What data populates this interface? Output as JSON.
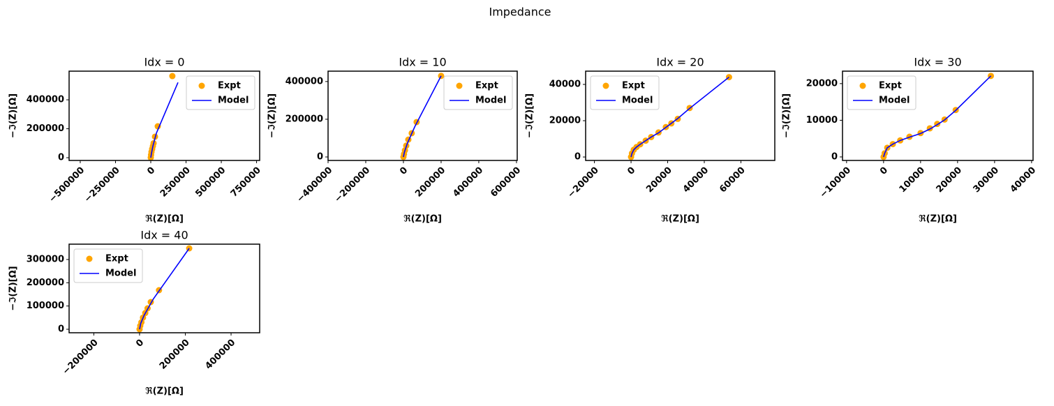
{
  "title": "Impedance",
  "chart_data": [
    {
      "type": "line",
      "title": "Idx = 0",
      "xlabel": "ℜ(Z)[Ω]",
      "ylabel": "−ℑ(Z)[Ω]",
      "xlim": [
        -579000,
        772000
      ],
      "ylim": [
        -19000,
        598000
      ],
      "xticks": [
        {
          "value": -500000,
          "label": "−500000"
        },
        {
          "value": -250000,
          "label": "−250000"
        },
        0,
        250000,
        500000,
        750000
      ],
      "yticks": [
        0,
        200000,
        400000
      ],
      "legend": "upper right",
      "series": [
        {
          "name": "Expt",
          "color": "#ffa500",
          "mode": "markers",
          "x": [
            0,
            2000,
            5000,
            10000,
            15000,
            20000,
            30000,
            49500,
            153000
          ],
          "values": [
            0,
            20000,
            40000,
            60000,
            80000,
            100000,
            145000,
            217000,
            564000
          ]
        },
        {
          "name": "Model",
          "color": "#0000ff",
          "mode": "lines",
          "x": [
            0,
            5000,
            15000,
            40000,
            193000
          ],
          "values": [
            0,
            30000,
            80000,
            170000,
            520000
          ]
        }
      ]
    },
    {
      "type": "line",
      "title": "Idx = 10",
      "xlabel": "ℜ(Z)[Ω]",
      "ylabel": "−ℑ(Z)[Ω]",
      "xlim": [
        -400000,
        604000
      ],
      "ylim": [
        -18500,
        455000
      ],
      "xticks": [
        {
          "value": -400000,
          "label": "−400000"
        },
        {
          "value": -200000,
          "label": "−200000"
        },
        0,
        200000,
        400000,
        600000
      ],
      "yticks": [
        0,
        200000,
        400000
      ],
      "legend": "upper right",
      "series": [
        {
          "name": "Expt",
          "color": "#ffa500",
          "mode": "markers",
          "x": [
            0,
            3000,
            8000,
            15000,
            26000,
            44000,
            70000,
            200000
          ],
          "values": [
            0,
            15000,
            35000,
            60000,
            92000,
            126000,
            185000,
            430000
          ]
        },
        {
          "name": "Model",
          "color": "#0000ff",
          "mode": "lines",
          "x": [
            0,
            5000,
            20000,
            60000,
            200000
          ],
          "values": [
            0,
            25000,
            70000,
            160000,
            430000
          ]
        }
      ]
    },
    {
      "type": "line",
      "title": "Idx = 20",
      "xlabel": "ℜ(Z)[Ω]",
      "ylabel": "−ℑ(Z)[Ω]",
      "xlim": [
        -24800,
        78500
      ],
      "ylim": [
        -1900,
        47300
      ],
      "xticks": [
        {
          "value": -20000,
          "label": "−20000"
        },
        0,
        20000,
        40000,
        60000
      ],
      "yticks": [
        0,
        20000,
        40000
      ],
      "legend": "upper left",
      "series": [
        {
          "name": "Expt",
          "color": "#ffa500",
          "mode": "markers",
          "x": [
            0,
            500,
            1500,
            3000,
            5000,
            8000,
            11000,
            15000,
            19000,
            22000,
            25500,
            32000,
            53500
          ],
          "values": [
            0,
            2000,
            4000,
            5500,
            7000,
            9000,
            11000,
            13500,
            16500,
            18500,
            21000,
            27000,
            44000
          ]
        },
        {
          "name": "Model",
          "color": "#0000ff",
          "mode": "lines",
          "x": [
            0,
            500,
            1500,
            3000,
            5000,
            8000,
            11000,
            15000,
            19000,
            25500,
            32000,
            53500
          ],
          "values": [
            0,
            2000,
            4000,
            5500,
            7000,
            9000,
            11000,
            13300,
            16300,
            21200,
            26800,
            44000
          ]
        }
      ]
    },
    {
      "type": "line",
      "title": "Idx = 30",
      "xlabel": "ℜ(Z)[Ω]",
      "ylabel": "−ℑ(Z)[Ω]",
      "xlim": [
        -11100,
        40400
      ],
      "ylim": [
        -960,
        23400
      ],
      "xticks": [
        {
          "value": -10000,
          "label": "−10000"
        },
        0,
        10000,
        20000,
        30000,
        40000
      ],
      "yticks": [
        0,
        10000,
        20000
      ],
      "legend": "upper left",
      "series": [
        {
          "name": "Expt",
          "color": "#ffa500",
          "mode": "markers",
          "x": [
            0,
            300,
            1000,
            2500,
            4500,
            7000,
            10000,
            12500,
            14500,
            16500,
            19500,
            29000
          ],
          "values": [
            0,
            1000,
            2500,
            3500,
            4500,
            5500,
            6500,
            7800,
            9000,
            10200,
            12800,
            22100
          ]
        },
        {
          "name": "Model",
          "color": "#0000ff",
          "mode": "lines",
          "x": [
            0,
            300,
            1000,
            2500,
            4500,
            7000,
            10000,
            12500,
            14500,
            16500,
            19500,
            29000
          ],
          "values": [
            0,
            1000,
            2500,
            3500,
            4500,
            5400,
            6400,
            7600,
            8800,
            10100,
            12700,
            22100
          ]
        }
      ]
    },
    {
      "type": "line",
      "title": "Idx = 40",
      "xlabel": "ℜ(Z)[Ω]",
      "ylabel": "−ℑ(Z)[Ω]",
      "xlim": [
        -308000,
        525000
      ],
      "ylim": [
        -15000,
        366000
      ],
      "xticks": [
        {
          "value": -200000,
          "label": "−200000"
        },
        0,
        200000,
        400000
      ],
      "yticks": [
        0,
        100000,
        200000,
        300000
      ],
      "legend": "upper left",
      "series": [
        {
          "name": "Expt",
          "color": "#ffa500",
          "mode": "markers",
          "x": [
            0,
            3000,
            8000,
            15000,
            25000,
            35000,
            49000,
            85000,
            217000
          ],
          "values": [
            0,
            15000,
            30000,
            50000,
            70000,
            90000,
            117000,
            168000,
            348000
          ]
        },
        {
          "name": "Model",
          "color": "#0000ff",
          "mode": "lines",
          "x": [
            0,
            5000,
            20000,
            60000,
            217000
          ],
          "values": [
            0,
            25000,
            60000,
            130000,
            348000
          ]
        }
      ]
    }
  ]
}
